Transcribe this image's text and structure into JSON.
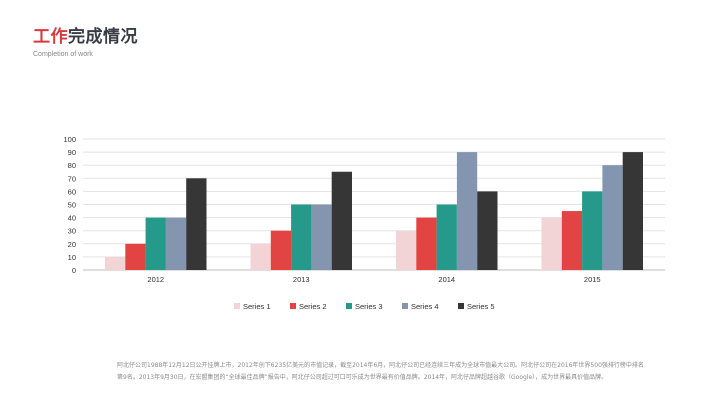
{
  "header": {
    "title_highlight": "工作",
    "title_rest": "完成情况",
    "subtitle": "Completion of work"
  },
  "colors": {
    "accent": "#d9393b",
    "series": [
      "#f2d3d6",
      "#e24444",
      "#25998a",
      "#8496af",
      "#363636"
    ]
  },
  "chart_data": {
    "type": "bar",
    "categories": [
      "2012",
      "2013",
      "2014",
      "2015"
    ],
    "series": [
      {
        "name": "Series 1",
        "values": [
          10,
          20,
          30,
          40
        ]
      },
      {
        "name": "Series 2",
        "values": [
          20,
          30,
          40,
          45
        ]
      },
      {
        "name": "Series 3",
        "values": [
          40,
          50,
          50,
          60
        ]
      },
      {
        "name": "Series 4",
        "values": [
          40,
          50,
          90,
          80
        ]
      },
      {
        "name": "Series 5",
        "values": [
          70,
          75,
          60,
          90
        ]
      }
    ],
    "ylim": [
      0,
      100
    ],
    "yticks": [
      "0",
      "10",
      "20",
      "30",
      "40",
      "50",
      "60",
      "70",
      "80",
      "90",
      "100"
    ],
    "grid": true,
    "legend": "bottom"
  },
  "footer": {
    "line1": "阿北仔公司1988年12月12日公开挂牌上市，2012年创下6235亿美元的市值记录，截至2014年6月，阿北仔公司已经连续三年成为全球市值最大公司。阿北仔公司在2016年世界500强排行榜中排名",
    "line2": "第9名。2013年9月30日，在宏盟集团的“全球最佳品牌”报告中，阿北仔公司超过可口可乐成为世界最有价值品牌。2014年，阿北仔品牌超越谷歌（Google），成为世界最具价值品牌。"
  }
}
